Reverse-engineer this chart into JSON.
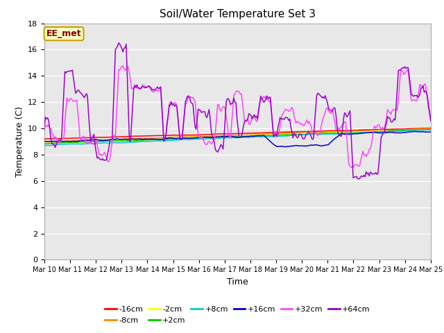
{
  "title": "Soil/Water Temperature Set 3",
  "xlabel": "Time",
  "ylabel": "Temperature (C)",
  "ylim": [
    0,
    18
  ],
  "yticks": [
    0,
    2,
    4,
    6,
    8,
    10,
    12,
    14,
    16,
    18
  ],
  "xtick_labels": [
    "Mar 10",
    "Mar 11",
    "Mar 12",
    "Mar 13",
    "Mar 14",
    "Mar 15",
    "Mar 16",
    "Mar 17",
    "Mar 18",
    "Mar 19",
    "Mar 20",
    "Mar 21",
    "Mar 22",
    "Mar 23",
    "Mar 24",
    "Mar 25"
  ],
  "annotation_text": "EE_met",
  "annotation_bg": "#ffffc0",
  "annotation_border": "#c8a000",
  "annotation_text_color": "#800000",
  "series_colors": {
    "-16cm": "#ff0000",
    "-8cm": "#ff8800",
    "-2cm": "#ffff00",
    "+2cm": "#00cc00",
    "+8cm": "#00cccc",
    "+16cm": "#0000cc",
    "+32cm": "#ff44ff",
    "+64cm": "#9900cc"
  },
  "plot_bg": "#e8e8e8",
  "grid_color": "#ffffff",
  "fig_bg": "#ffffff"
}
